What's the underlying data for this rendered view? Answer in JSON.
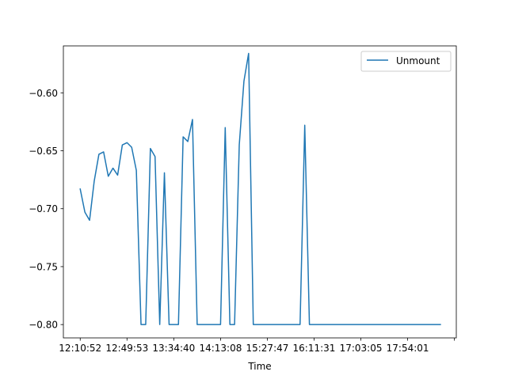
{
  "chart_data": {
    "type": "line",
    "title": "",
    "xlabel": "Time",
    "ylabel": "",
    "x_tick_labels": [
      "12:10:52",
      "12:49:53",
      "13:34:40",
      "14:13:08",
      "15:27:47",
      "16:11:31",
      "17:03:05",
      "17:54:01"
    ],
    "x_tick_positions": [
      0,
      10,
      20,
      30,
      40,
      50,
      60,
      70
    ],
    "y_ticks": [
      -0.8,
      -0.75,
      -0.7,
      -0.65,
      -0.6
    ],
    "y_tick_labels": [
      "−0.80",
      "−0.75",
      "−0.70",
      "−0.65",
      "−0.60"
    ],
    "xlim": [
      -3.6,
      80.4
    ],
    "ylim": [
      -0.8115,
      -0.5595
    ],
    "grid": false,
    "legend_position": "top-right",
    "series": [
      {
        "name": "Unmount",
        "color": "#1f77b4",
        "x": [
          0,
          1,
          2,
          3,
          4,
          5,
          6,
          7,
          8,
          9,
          10,
          11,
          12,
          13,
          14,
          15,
          16,
          17,
          18,
          19,
          20,
          21,
          22,
          23,
          24,
          25,
          26,
          27,
          28,
          29,
          30,
          31,
          32,
          33,
          34,
          35,
          36,
          37,
          38,
          39,
          40,
          41,
          42,
          43,
          44,
          45,
          46,
          47,
          48,
          49,
          50,
          51,
          52,
          53,
          54,
          55,
          56,
          57,
          58,
          59,
          60,
          61,
          62,
          63,
          64,
          65,
          66,
          67,
          68,
          69,
          70,
          71,
          72,
          73,
          74,
          75,
          76,
          77
        ],
        "values": [
          -0.683,
          -0.703,
          -0.71,
          -0.676,
          -0.653,
          -0.651,
          -0.672,
          -0.665,
          -0.671,
          -0.645,
          -0.643,
          -0.647,
          -0.667,
          -0.8,
          -0.8,
          -0.648,
          -0.655,
          -0.8,
          -0.669,
          -0.8,
          -0.8,
          -0.8,
          -0.638,
          -0.642,
          -0.623,
          -0.8,
          -0.8,
          -0.8,
          -0.8,
          -0.8,
          -0.8,
          -0.63,
          -0.8,
          -0.8,
          -0.645,
          -0.59,
          -0.566,
          -0.8,
          -0.8,
          -0.8,
          -0.8,
          -0.8,
          -0.8,
          -0.8,
          -0.8,
          -0.8,
          -0.8,
          -0.8,
          -0.628,
          -0.8,
          -0.8,
          -0.8,
          -0.8,
          -0.8,
          -0.8,
          -0.8,
          -0.8,
          -0.8,
          -0.8,
          -0.8,
          -0.8,
          -0.8,
          -0.8,
          -0.8,
          -0.8,
          -0.8,
          -0.8,
          -0.8,
          -0.8,
          -0.8,
          -0.8,
          -0.8,
          -0.8,
          -0.8,
          -0.8,
          -0.8,
          -0.8,
          -0.8
        ]
      }
    ]
  }
}
